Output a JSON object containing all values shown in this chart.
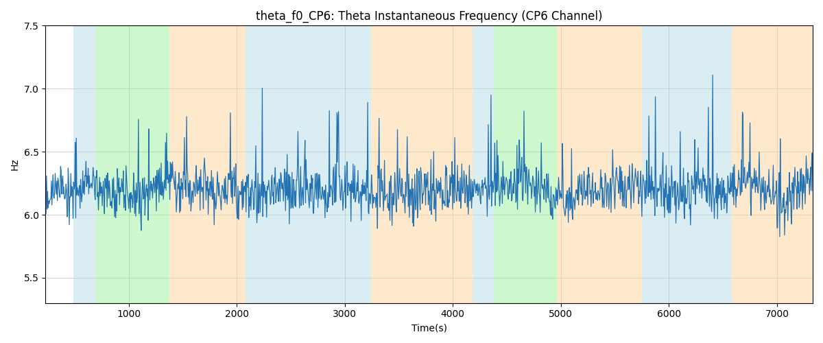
{
  "title": "theta_f0_CP6: Theta Instantaneous Frequency (CP6 Channel)",
  "xlabel": "Time(s)",
  "ylabel": "Hz",
  "ylim": [
    5.3,
    7.5
  ],
  "xlim": [
    230,
    7330
  ],
  "yticks": [
    5.5,
    6.0,
    6.5,
    7.0,
    7.5
  ],
  "xticks": [
    1000,
    2000,
    3000,
    4000,
    5000,
    6000,
    7000
  ],
  "line_color": "#2272b4",
  "line_width": 0.9,
  "bands": [
    {
      "xmin": 490,
      "xmax": 700,
      "color": "#add8e6",
      "alpha": 0.45
    },
    {
      "xmin": 700,
      "xmax": 1380,
      "color": "#90ee90",
      "alpha": 0.45
    },
    {
      "xmin": 1380,
      "xmax": 2080,
      "color": "#ffd59a",
      "alpha": 0.5
    },
    {
      "xmin": 2080,
      "xmax": 3120,
      "color": "#add8e6",
      "alpha": 0.45
    },
    {
      "xmin": 3120,
      "xmax": 3240,
      "color": "#add8e6",
      "alpha": 0.45
    },
    {
      "xmin": 3240,
      "xmax": 4180,
      "color": "#ffd59a",
      "alpha": 0.5
    },
    {
      "xmin": 4180,
      "xmax": 4380,
      "color": "#add8e6",
      "alpha": 0.45
    },
    {
      "xmin": 4380,
      "xmax": 4960,
      "color": "#90ee90",
      "alpha": 0.45
    },
    {
      "xmin": 4960,
      "xmax": 5750,
      "color": "#ffd59a",
      "alpha": 0.5
    },
    {
      "xmin": 5750,
      "xmax": 6580,
      "color": "#add8e6",
      "alpha": 0.45
    },
    {
      "xmin": 6580,
      "xmax": 7330,
      "color": "#ffd59a",
      "alpha": 0.5
    }
  ],
  "seed": 42,
  "t_start": 230,
  "t_end": 7330,
  "n_points": 1420,
  "base_freq": 6.18,
  "figsize": [
    12,
    5
  ],
  "dpi": 100,
  "title_fontsize": 12
}
